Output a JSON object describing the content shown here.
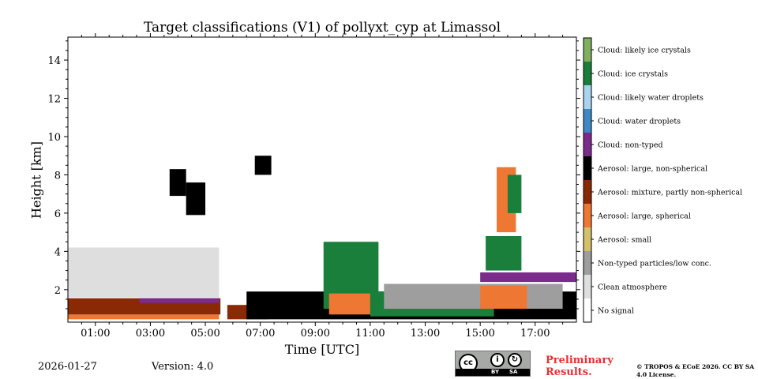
{
  "chart_data": {
    "type": "heatmap",
    "title": "Target classifications (V1) of pollyxt_cyp at Limassol",
    "xlabel": "Time [UTC]",
    "ylabel": "Height [km]",
    "xlim": [
      0,
      18.5
    ],
    "ylim": [
      0.3,
      15.2
    ],
    "x_ticks": [
      {
        "value": 1,
        "label": "01:00"
      },
      {
        "value": 3,
        "label": "03:00"
      },
      {
        "value": 5,
        "label": "05:00"
      },
      {
        "value": 7,
        "label": "07:00"
      },
      {
        "value": 9,
        "label": "09:00"
      },
      {
        "value": 11,
        "label": "11:00"
      },
      {
        "value": 13,
        "label": "13:00"
      },
      {
        "value": 15,
        "label": "15:00"
      },
      {
        "value": 17,
        "label": "17:00"
      }
    ],
    "y_ticks": [
      {
        "value": 2,
        "label": "2"
      },
      {
        "value": 4,
        "label": "4"
      },
      {
        "value": 6,
        "label": "6"
      },
      {
        "value": 8,
        "label": "8"
      },
      {
        "value": 10,
        "label": "10"
      },
      {
        "value": 12,
        "label": "12"
      },
      {
        "value": 14,
        "label": "14"
      }
    ],
    "classes": [
      {
        "label": "No signal",
        "color": "#ffffff"
      },
      {
        "label": "Clean atmosphere",
        "color": "#dedede"
      },
      {
        "label": "Non-typed particles/low conc.",
        "color": "#9e9e9e"
      },
      {
        "label": "Aerosol: small",
        "color": "#d4c06a"
      },
      {
        "label": "Aerosol: large, spherical",
        "color": "#ee7733"
      },
      {
        "label": "Aerosol: mixture, partly non-spherical",
        "color": "#8a2a05"
      },
      {
        "label": "Aerosol: large, non-spherical",
        "color": "#000000"
      },
      {
        "label": "Cloud: non-typed",
        "color": "#7b2b8c"
      },
      {
        "label": "Cloud: water droplets",
        "color": "#3d88c6"
      },
      {
        "label": "Cloud: likely water droplets",
        "color": "#a9d4f0"
      },
      {
        "label": "Cloud: ice crystals",
        "color": "#1a7f3a"
      },
      {
        "label": "Cloud: likely ice crystals",
        "color": "#7fb05e"
      }
    ],
    "regions": [
      {
        "class": "Aerosol: large, spherical",
        "t0": 0.0,
        "t1": 5.5,
        "h0": 0.45,
        "h1": 0.7
      },
      {
        "class": "Aerosol: mixture, partly non-spherical",
        "t0": 0.0,
        "t1": 5.55,
        "h0": 0.7,
        "h1": 1.55
      },
      {
        "class": "Cloud: non-typed",
        "t0": 2.6,
        "t1": 5.5,
        "h0": 1.3,
        "h1": 1.55
      },
      {
        "class": "Clean atmosphere",
        "t0": 0.0,
        "t1": 5.5,
        "h0": 1.6,
        "h1": 4.2
      },
      {
        "class": "Aerosol: large, non-spherical",
        "t0": 3.7,
        "t1": 4.3,
        "h0": 6.9,
        "h1": 8.3
      },
      {
        "class": "Aerosol: large, non-spherical",
        "t0": 4.3,
        "t1": 5.0,
        "h0": 5.9,
        "h1": 7.6
      },
      {
        "class": "Aerosol: mixture, partly non-spherical",
        "t0": 5.8,
        "t1": 7.3,
        "h0": 0.45,
        "h1": 1.2
      },
      {
        "class": "Aerosol: large, non-spherical",
        "t0": 6.5,
        "t1": 18.5,
        "h0": 0.45,
        "h1": 1.9
      },
      {
        "class": "Aerosol: large, non-spherical",
        "t0": 6.8,
        "t1": 7.4,
        "h0": 8.0,
        "h1": 9.0
      },
      {
        "class": "Cloud: ice crystals",
        "t0": 9.3,
        "t1": 11.3,
        "h0": 1.0,
        "h1": 4.5
      },
      {
        "class": "Aerosol: large, spherical",
        "t0": 9.5,
        "t1": 11.0,
        "h0": 0.7,
        "h1": 1.8
      },
      {
        "class": "Cloud: ice crystals",
        "t0": 11.0,
        "t1": 15.5,
        "h0": 0.6,
        "h1": 1.9
      },
      {
        "class": "Non-typed particles/low conc.",
        "t0": 11.5,
        "t1": 18.0,
        "h0": 1.0,
        "h1": 2.3
      },
      {
        "class": "Cloud: non-typed",
        "t0": 15.0,
        "t1": 18.5,
        "h0": 2.4,
        "h1": 2.9
      },
      {
        "class": "Aerosol: large, spherical",
        "t0": 15.0,
        "t1": 16.7,
        "h0": 1.0,
        "h1": 2.2
      },
      {
        "class": "Cloud: ice crystals",
        "t0": 15.2,
        "t1": 16.5,
        "h0": 3.0,
        "h1": 4.8
      },
      {
        "class": "Aerosol: large, spherical",
        "t0": 15.6,
        "t1": 16.3,
        "h0": 5.0,
        "h1": 8.4
      },
      {
        "class": "Cloud: ice crystals",
        "t0": 16.0,
        "t1": 16.5,
        "h0": 6.0,
        "h1": 8.0
      }
    ]
  },
  "footer": {
    "date": "2026-01-27",
    "version": "Version: 4.0",
    "preliminary": "Preliminary Results.",
    "license_by": "BY",
    "license_sa": "SA",
    "copyright": "© TROPOS & ECoE 2026. CC BY SA 4.0 License."
  }
}
